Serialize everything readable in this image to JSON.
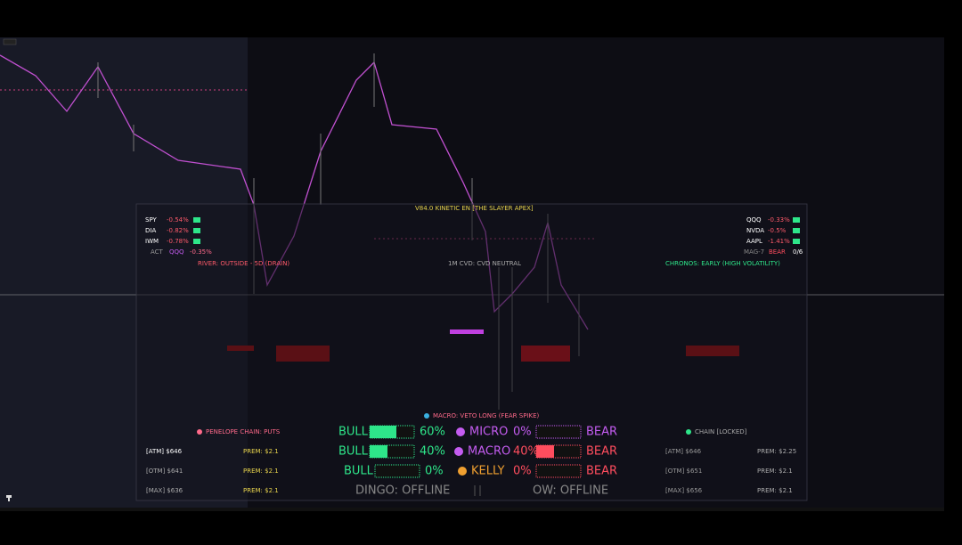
{
  "header": {
    "title": "V84.0 KINETIC EN [THE SLAYER APEX]"
  },
  "tickers_left": [
    {
      "symbol": "SPY",
      "change": "-0.54%"
    },
    {
      "symbol": "DIA",
      "change": "-0.82%"
    },
    {
      "symbol": "IWM",
      "change": "-0.78%"
    }
  ],
  "act": {
    "label": "ACT",
    "symbol": "QQQ",
    "change": "-0.35%"
  },
  "tickers_right": [
    {
      "symbol": "QQQ",
      "change": "-0.33%"
    },
    {
      "symbol": "NVDA",
      "change": "-0.5%"
    },
    {
      "symbol": "AAPL",
      "change": "-1.41%"
    }
  ],
  "mag7": {
    "label": "MAG-7",
    "signal": "BEAR",
    "count": "0/6"
  },
  "status": {
    "river": "RIVER: OUTSIDE - 5D (DRAIN)",
    "cvd": "1M CVD: CVD NEUTRAL",
    "chronos": "CHRONOS: EARLY (HIGH VOLATILITY)",
    "macro": "MACRO: VETO LONG (FEAR SPIKE)"
  },
  "chain": {
    "left_title": "PENELOPE CHAIN: PUTS",
    "right_title": "CHAIN [LOCKED]",
    "left_rows": [
      {
        "strike": "[ATM] $646",
        "prem": "PREM: $2.1"
      },
      {
        "strike": "[OTM] $641",
        "prem": "PREM: $2.1"
      },
      {
        "strike": "[MAX] $636",
        "prem": "PREM: $2.1"
      }
    ],
    "right_rows": [
      {
        "strike": "[ATM] $646",
        "prem": "PREM: $2.25"
      },
      {
        "strike": "[OTM] $651",
        "prem": "PREM: $2.1"
      },
      {
        "strike": "[MAX] $656",
        "prem": "PREM: $2.1"
      }
    ]
  },
  "gauges": [
    {
      "left_label": "BULL",
      "left_pct": {
        "value": 60,
        "label": "60%"
      },
      "mid_label": "MICRO",
      "right_pct": {
        "value": 0,
        "label": "0%"
      },
      "right_label": "BEAR",
      "left_color": "#2ee68a",
      "mid_color": "#c45cf0",
      "right_color": "#c45cf0"
    },
    {
      "left_label": "BULL",
      "left_pct": {
        "value": 40,
        "label": "40%"
      },
      "mid_label": "MACRO",
      "right_pct": {
        "value": 40,
        "label": "40%"
      },
      "right_label": "BEAR",
      "left_color": "#2ee68a",
      "mid_color": "#c45cf0",
      "right_color": "#ff4d5e"
    },
    {
      "left_label": "BULL",
      "left_pct": {
        "value": 0,
        "label": "0%"
      },
      "mid_label": "KELLY",
      "right_pct": {
        "value": 0,
        "label": "0%"
      },
      "right_label": "BEAR",
      "left_color": "#2ee68a",
      "mid_color": "#f0a030",
      "right_color": "#ff4d5e"
    }
  ],
  "offline": {
    "dingo": "DINGO: OFFLINE",
    "ow": "OW: OFFLINE"
  }
}
